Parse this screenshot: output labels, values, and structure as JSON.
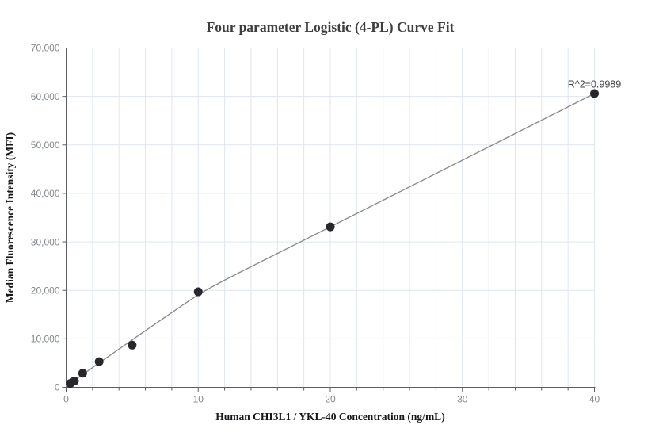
{
  "page": {
    "background": "#ffffff"
  },
  "chart_data": {
    "type": "scatter",
    "title": "Four parameter Logistic (4-PL) Curve Fit",
    "xlabel": "Human CHI3L1 / YKL-40 Concentration (ng/mL)",
    "ylabel": "Median Fluorescence Intensity (MFI)",
    "annotation": {
      "text": "R^2=0.9989",
      "x": 40,
      "y": 61800
    },
    "xlim": [
      0,
      40
    ],
    "ylim": [
      0,
      70000
    ],
    "xticks": [
      0,
      10,
      20,
      30,
      40
    ],
    "xtick_labels": [
      "0",
      "10",
      "20",
      "30",
      "40"
    ],
    "x_minor_step": 2,
    "yticks": [
      0,
      10000,
      20000,
      30000,
      40000,
      50000,
      60000,
      70000
    ],
    "ytick_labels": [
      "0",
      "10,000",
      "20,000",
      "30,000",
      "40,000",
      "50,000",
      "60,000",
      "70,000"
    ],
    "grid": true,
    "legend": "none",
    "points": [
      [
        0.3125,
        800
      ],
      [
        0.625,
        1300
      ],
      [
        1.25,
        2900
      ],
      [
        2.5,
        5300
      ],
      [
        5,
        8700
      ],
      [
        10,
        19700
      ],
      [
        20,
        33100
      ],
      [
        40,
        60600
      ]
    ],
    "fit_curve": [
      [
        0,
        250
      ],
      [
        1,
        2160
      ],
      [
        2,
        4070
      ],
      [
        3,
        5980
      ],
      [
        4,
        7880
      ],
      [
        5,
        9780
      ],
      [
        6,
        11670
      ],
      [
        7,
        13550
      ],
      [
        8,
        15430
      ],
      [
        9,
        17280
      ],
      [
        10,
        19100
      ],
      [
        11,
        20650
      ],
      [
        12,
        22100
      ],
      [
        13,
        23500
      ],
      [
        14,
        24880
      ],
      [
        16,
        27620
      ],
      [
        18,
        30360
      ],
      [
        20,
        33100
      ],
      [
        24,
        38600
      ],
      [
        28,
        44100
      ],
      [
        32,
        49600
      ],
      [
        36,
        55100
      ],
      [
        40,
        60600
      ]
    ],
    "point_radius": 5.5,
    "colors": {
      "point": "#28282c",
      "curve": "#8c8c8c",
      "grid": "#dfe6f0",
      "axis": "#5b5e66",
      "tick_label": "#85878f",
      "title": "#3d3d3d",
      "axis_label": "#17171b",
      "annotation": "#43444b",
      "background": "#ffffff"
    }
  }
}
